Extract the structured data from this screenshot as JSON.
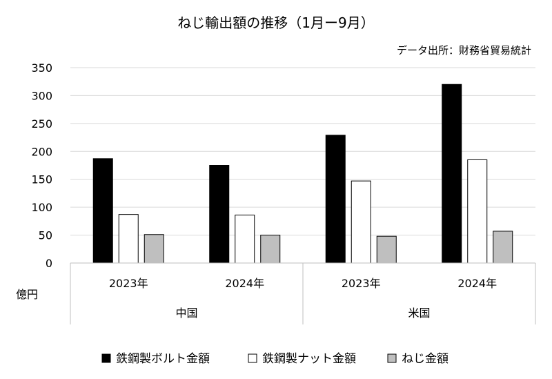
{
  "chart_data": {
    "type": "bar",
    "title": "ねじ輸出額の推移（1月ー9月）",
    "source": "データ出所：財務省貿易統計",
    "ylabel": "億円",
    "ylim": [
      0,
      350
    ],
    "yticks": [
      0,
      50,
      100,
      150,
      200,
      250,
      300,
      350
    ],
    "grid": true,
    "legend_position": "bottom",
    "groups": [
      {
        "label": "中国",
        "categories": [
          "2023年",
          "2024年"
        ]
      },
      {
        "label": "米国",
        "categories": [
          "2023年",
          "2024年"
        ]
      }
    ],
    "categories": [
      "2023年",
      "2024年",
      "2023年",
      "2024年"
    ],
    "series": [
      {
        "name": "鉄鋼製ボルト金額",
        "values": [
          187,
          175,
          229,
          320
        ],
        "color": "#000000",
        "stroke": "#000000"
      },
      {
        "name": "鉄鋼製ナット金額",
        "values": [
          87,
          86,
          147,
          185
        ],
        "color": "#ffffff",
        "stroke": "#000000"
      },
      {
        "name": "ねじ金額",
        "values": [
          51,
          50,
          48,
          57
        ],
        "color": "#bfbfbf",
        "stroke": "#000000"
      }
    ]
  }
}
